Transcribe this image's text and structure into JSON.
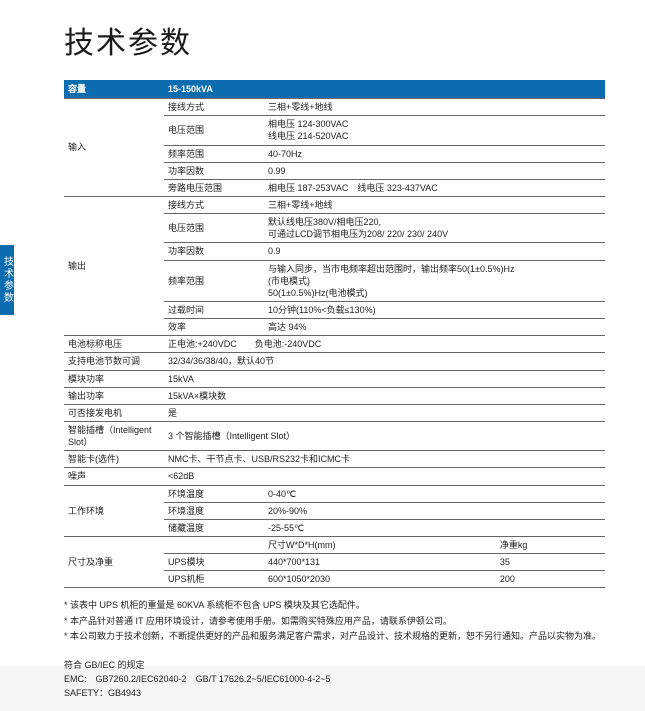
{
  "sideTab": "技术参数",
  "title": "技术参数",
  "header": {
    "label": "容量",
    "value": "15-150kVA"
  },
  "rows": [
    {
      "group": "输入",
      "span": 5,
      "sub": "接线方式",
      "val": "三相+零线+地线"
    },
    {
      "sub": "电压范围",
      "val": "相电压 124-300VAC\n线电压 214-520VAC"
    },
    {
      "sub": "频率范围",
      "val": "40-70Hz"
    },
    {
      "sub": "功率因数",
      "val": "0.99"
    },
    {
      "sub": "旁路电压范围",
      "val": "相电压 187-253VAC　线电压 323-437VAC"
    },
    {
      "group": "输出",
      "span": 6,
      "sub": "接线方式",
      "val": "三相+零线+地线"
    },
    {
      "sub": "电压范围",
      "val": "默认线电压380V/相电压220,\n可通过LCD调节相电压为208/ 220/ 230/ 240V"
    },
    {
      "sub": "功率因数",
      "val": "0.9"
    },
    {
      "sub": "频率范围",
      "val": "与输入同步，当市电频率超出范围时，输出频率50(1±0.5%)Hz\n(市电模式)\n50(1±0.5%)Hz(电池模式)"
    },
    {
      "sub": "过载时间",
      "val": "10分钟(110%<负载≤130%)"
    },
    {
      "sub": "效率",
      "val": "高达 94%"
    },
    {
      "full": "电池标称电压",
      "val": "正电池:+240VDC　　负电池:-240VDC"
    },
    {
      "full": "支持电池节数可调",
      "val": "32/34/36/38/40，默认40节"
    },
    {
      "full": "模块功率",
      "val": "15kVA"
    },
    {
      "full": "输出功率",
      "val": "15kVA×模块数"
    },
    {
      "full": "可否接发电机",
      "val": "是"
    },
    {
      "full": "智能插槽（Intelligent Slot）",
      "val": "3 个智能插槽（Intelligent Slot）"
    },
    {
      "full": "智能卡(选件)",
      "val": "NMC卡、干节点卡、USB/RS232卡和ICMC卡"
    },
    {
      "full": "噪声",
      "val": "<62dB"
    },
    {
      "group": "工作环境",
      "span": 3,
      "sub": "环境温度",
      "val": "0-40℃"
    },
    {
      "sub": "环境湿度",
      "val": "20%-90%"
    },
    {
      "sub": "储藏温度",
      "val": "-25-55℃"
    }
  ],
  "dimHeader": {
    "label": "",
    "c1": "尺寸W*D*H(mm)",
    "c2": "净重kg"
  },
  "dimRows": [
    {
      "group": "尺寸及净重",
      "span": 3,
      "sub": "UPS模块",
      "c1": "440*700*131",
      "c2": "35"
    },
    {
      "sub": "UPS机柜",
      "c1": "600*1050*2030",
      "c2": "200"
    }
  ],
  "notes": [
    "* 该表中 UPS 机柜的重量是 60KVA 系统柜不包含 UPS 模块及其它选配件。",
    "* 本产品针对普通 IT 应用环境设计，请参考使用手册。如需购买特殊应用产品，请联系伊顿公司。",
    "* 本公司致力于技术创新，不断提供更好的产品和服务满足客户需求，对产品设计、技术规格的更新，恕不另行通知。产品以实物为准。"
  ],
  "standards": {
    "l1": "符合 GB/IEC 的规定",
    "l2": "EMC:　GB7260.2/IEC62040-2　GB/T 17626.2~5/IEC61000-4-2~5",
    "l3": "SAFETY：GB4943"
  }
}
